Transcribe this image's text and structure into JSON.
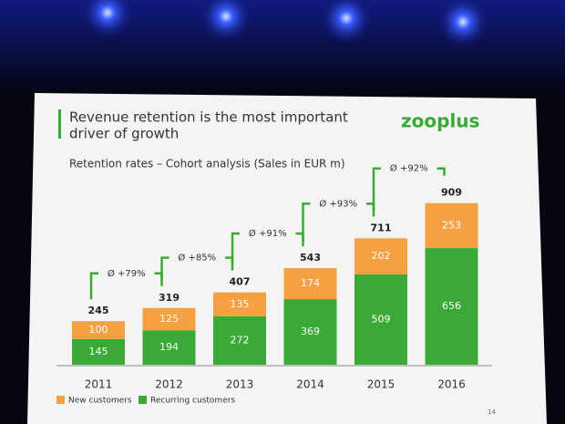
{
  "chart_data": {
    "type": "stacked_bar",
    "title": [
      "Revenue retention is the most important",
      "driver of growth"
    ],
    "logo": "zooplus",
    "subtitle": "Retention rates – Cohort analysis (Sales in EUR m)",
    "categories": [
      "2011",
      "2012",
      "2013",
      "2014",
      "2015",
      "2016"
    ],
    "series": [
      {
        "name": "Recurring customers",
        "color": "#3aa935",
        "values": [
          145,
          194,
          272,
          369,
          509,
          656
        ]
      },
      {
        "name": "New customers",
        "color": "#f5a042",
        "values": [
          100,
          125,
          135,
          174,
          202,
          253
        ]
      }
    ],
    "totals": [
      245,
      319,
      407,
      543,
      711,
      909
    ],
    "annotations": [
      "Ø +79%",
      "Ø +85%",
      "Ø +91%",
      "Ø +93%",
      "Ø +92%"
    ],
    "page_number": "14"
  }
}
